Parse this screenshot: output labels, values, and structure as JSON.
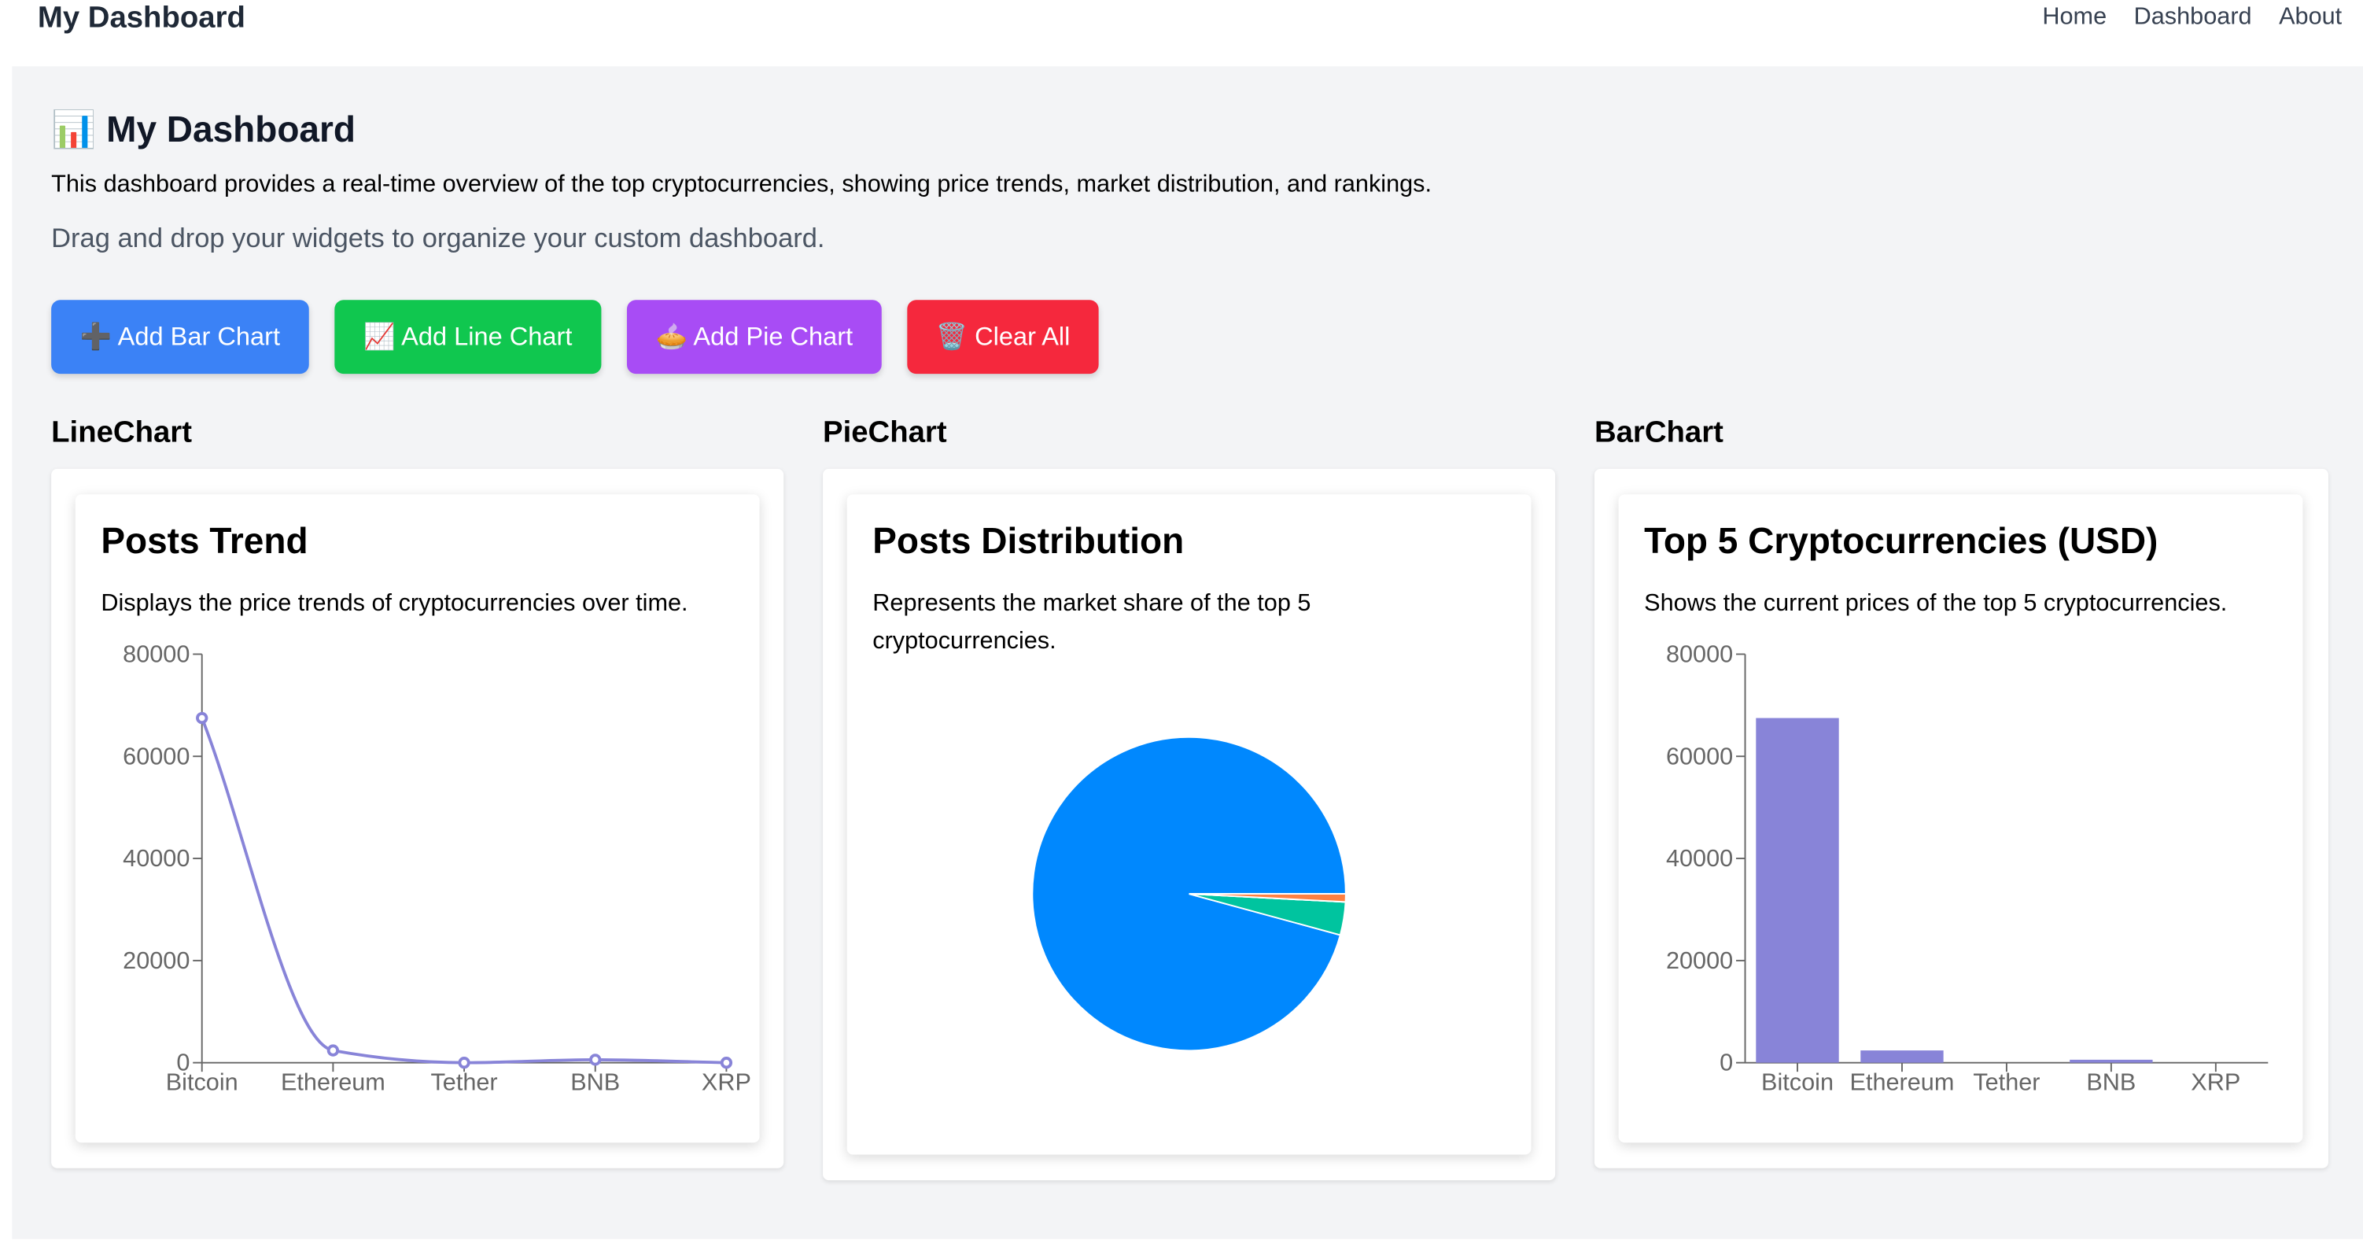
{
  "navbar": {
    "brand": "My Dashboard",
    "links": [
      "Home",
      "Dashboard",
      "About"
    ]
  },
  "header": {
    "title": "📊 My Dashboard",
    "description": "This dashboard provides a real-time overview of the top cryptocurrencies, showing price trends, market distribution, and rankings.",
    "hint": "Drag and drop your widgets to organize your custom dashboard."
  },
  "buttons": [
    "➕ Add Bar Chart",
    "📈 Add Line Chart",
    "🥧 Add Pie Chart",
    "🗑️ Clear All"
  ],
  "sections": [
    "LineChart",
    "PieChart",
    "BarChart"
  ],
  "chart_data": [
    {
      "type": "line",
      "title": "Posts Trend",
      "subtitle": "Displays the price trends of cryptocurrencies over time.",
      "categories": [
        "Bitcoin",
        "Ethereum",
        "Tether",
        "BNB",
        "XRP"
      ],
      "values": [
        67500,
        2400,
        1,
        580,
        0.5
      ],
      "color": "#8884d8",
      "ylim": [
        0,
        80000
      ],
      "yticks": [
        0,
        20000,
        40000,
        60000,
        80000
      ]
    },
    {
      "type": "pie",
      "title": "Posts Distribution",
      "subtitle": "Represents the market share of the top 5 cryptocurrencies.",
      "values": [
        67500,
        2400,
        1,
        580,
        0.5
      ],
      "colors": [
        "#0088FE",
        "#00C49F",
        "#FFBB28",
        "#FF8042",
        "#A28EFF"
      ]
    },
    {
      "type": "bar",
      "title": "Top 5 Cryptocurrencies (USD)",
      "subtitle": "Shows the current prices of the top 5 cryptocurrencies.",
      "categories": [
        "Bitcoin",
        "Ethereum",
        "Tether",
        "BNB",
        "XRP"
      ],
      "values": [
        67500,
        2400,
        1,
        580,
        0.5
      ],
      "color": "#8884d8",
      "ylim": [
        0,
        80000
      ],
      "yticks": [
        0,
        20000,
        40000,
        60000,
        80000
      ]
    }
  ]
}
